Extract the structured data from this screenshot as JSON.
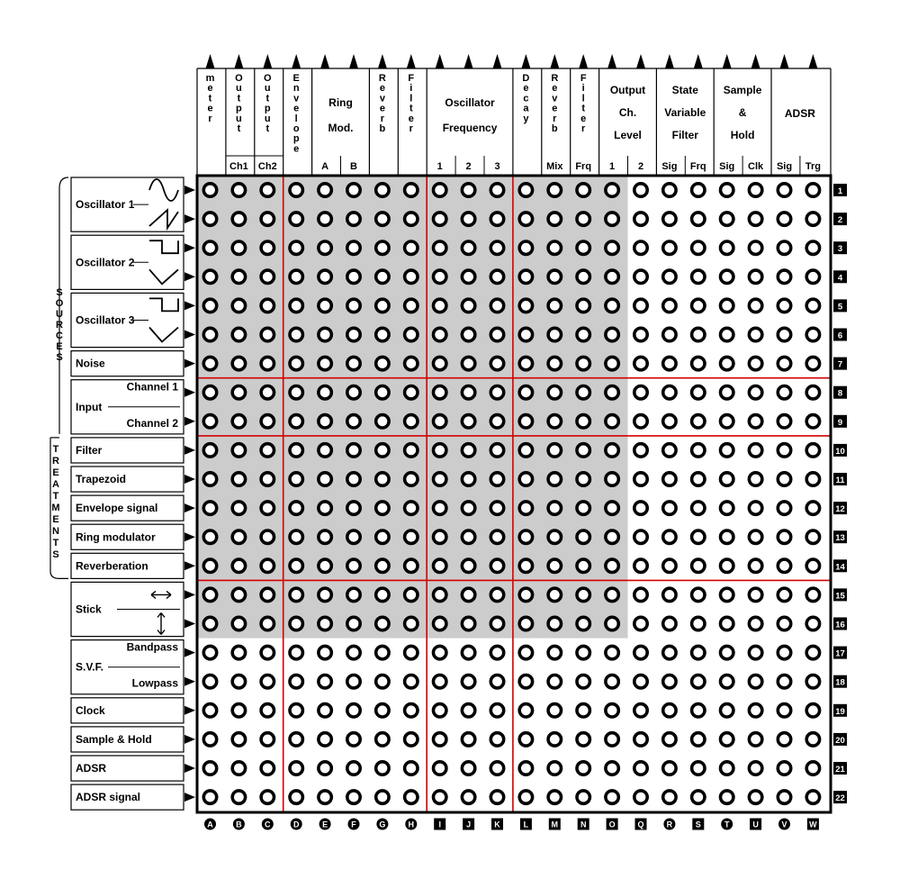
{
  "columns": [
    {
      "id": "A",
      "head": "meter",
      "vertical": true
    },
    {
      "id": "B",
      "head": "Output",
      "vertical": true,
      "sub": "Ch1"
    },
    {
      "id": "C",
      "head": "Output",
      "vertical": true,
      "sub": "Ch2"
    },
    {
      "id": "D",
      "head": "Envelope",
      "vertical": true
    },
    {
      "id": "E",
      "sub": "A"
    },
    {
      "id": "F",
      "sub": "B"
    },
    {
      "id": "G",
      "head": "Reverb",
      "vertical": true
    },
    {
      "id": "H",
      "head": "Filter",
      "vertical": true
    },
    {
      "id": "I",
      "sub": "1"
    },
    {
      "id": "J",
      "sub": "2"
    },
    {
      "id": "K",
      "sub": "3"
    },
    {
      "id": "L",
      "head": "Decay",
      "vertical": true
    },
    {
      "id": "M",
      "head": "Reverb",
      "vertical": true,
      "sub": "Mix"
    },
    {
      "id": "N",
      "head": "Filter",
      "vertical": true,
      "sub": "Frq"
    },
    {
      "id": "O",
      "sub": "1"
    },
    {
      "id": "Q",
      "sub": "2"
    },
    {
      "id": "R",
      "sub": "Sig"
    },
    {
      "id": "S",
      "sub": "Frq"
    },
    {
      "id": "T",
      "sub": "Sig"
    },
    {
      "id": "U",
      "sub": "Clk"
    },
    {
      "id": "V",
      "sub": "Sig"
    },
    {
      "id": "W",
      "sub": "Trg"
    }
  ],
  "column_groups": [
    {
      "start": 4,
      "end": 5,
      "lines": [
        "Ring",
        "Mod."
      ]
    },
    {
      "start": 8,
      "end": 10,
      "lines": [
        "Oscillator",
        "Frequency"
      ]
    },
    {
      "start": 14,
      "end": 15,
      "lines": [
        "Output",
        "Ch.",
        "Level"
      ]
    },
    {
      "start": 16,
      "end": 17,
      "lines": [
        "State",
        "Variable",
        "Filter"
      ]
    },
    {
      "start": 18,
      "end": 19,
      "lines": [
        "Sample",
        "&",
        "Hold"
      ]
    },
    {
      "start": 20,
      "end": 21,
      "lines": [
        "ADSR"
      ]
    }
  ],
  "rows": [
    "1",
    "2",
    "3",
    "4",
    "5",
    "6",
    "7",
    "8",
    "9",
    "10",
    "11",
    "12",
    "13",
    "14",
    "15",
    "16",
    "17",
    "18",
    "19",
    "20",
    "21",
    "22"
  ],
  "row_labels": [
    {
      "start": 0,
      "end": 1,
      "text": "Oscillator 1",
      "waves": [
        "sine",
        "saw"
      ]
    },
    {
      "start": 2,
      "end": 3,
      "text": "Oscillator 2",
      "waves": [
        "square",
        "triangle"
      ]
    },
    {
      "start": 4,
      "end": 5,
      "text": "Oscillator 3",
      "waves": [
        "square",
        "triangle"
      ]
    },
    {
      "start": 6,
      "end": 6,
      "text": "Noise"
    },
    {
      "start": 7,
      "end": 8,
      "text": "Input",
      "subs": [
        "Channel  1",
        "Channel  2"
      ]
    },
    {
      "start": 9,
      "end": 9,
      "text": "Filter"
    },
    {
      "start": 10,
      "end": 10,
      "text": "Trapezoid"
    },
    {
      "start": 11,
      "end": 11,
      "text": "Envelope signal"
    },
    {
      "start": 12,
      "end": 12,
      "text": "Ring modulator"
    },
    {
      "start": 13,
      "end": 13,
      "text": "Reverberation"
    },
    {
      "start": 14,
      "end": 15,
      "text": "Stick",
      "arrows": [
        "horizontal",
        "vertical"
      ]
    },
    {
      "start": 16,
      "end": 17,
      "text": "S.V.F.",
      "subs": [
        "Bandpass",
        "Lowpass"
      ]
    },
    {
      "start": 18,
      "end": 18,
      "text": "Clock"
    },
    {
      "start": 19,
      "end": 19,
      "text": "Sample & Hold"
    },
    {
      "start": 20,
      "end": 20,
      "text": "ADSR"
    },
    {
      "start": 21,
      "end": 21,
      "text": "ADSR signal"
    }
  ],
  "side_labels": {
    "sources": "SOURCES",
    "treatments": "TREATMENTS"
  },
  "shaded_region": {
    "cols": 15,
    "rows": 16
  },
  "red_divider_cols": [
    "D",
    "I",
    "L"
  ],
  "red_divider_rows": [
    "8",
    "10",
    "15"
  ],
  "colors": {
    "shade": "#cccccc",
    "divider": "#d40000",
    "ink": "#000000"
  }
}
